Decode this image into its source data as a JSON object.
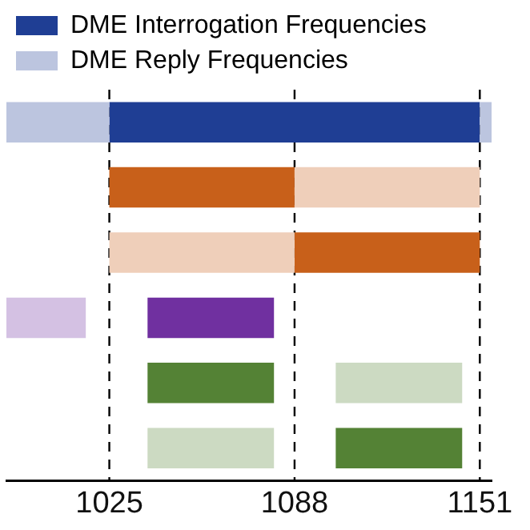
{
  "chart_data": {
    "type": "bar",
    "orientation": "horizontal",
    "categories": [
      null,
      null,
      null,
      null,
      null,
      null
    ],
    "series": [
      {
        "name": "DME Interrogation Frequencies",
        "colors": [
          "#1f3e94",
          "#c8601a",
          "#c8601a",
          "#7030a0",
          "#548235",
          "#548235"
        ],
        "base": [
          1025,
          1025,
          1088,
          1038,
          1038,
          1102
        ],
        "values": [
          126,
          63,
          63,
          43,
          43,
          43
        ]
      },
      {
        "name": "DME Reply Frequencies",
        "colors": [
          "#bcc5df",
          "#efcfba",
          "#efcfba",
          "#d4c1e3",
          "#ccdac2",
          "#ccdac2"
        ],
        "base": [
          990,
          1088,
          1025,
          990,
          1102,
          1038
        ],
        "values": [
          35,
          63,
          63,
          27,
          43,
          43
        ]
      },
      {
        "colors": [
          "#bcc5df",
          null,
          null,
          null,
          null,
          null
        ],
        "base": [
          1151,
          null,
          null,
          null,
          null,
          null
        ],
        "values": [
          4,
          null,
          null,
          null,
          null,
          null
        ]
      }
    ],
    "xlim": [
      990,
      1155
    ],
    "xticks": [
      1025,
      1088,
      1151
    ],
    "ref_lines": [
      {
        "axis": "x",
        "value": 1025,
        "color": "#000000",
        "line_style": "dashed"
      },
      {
        "axis": "x",
        "value": 1088,
        "color": "#000000",
        "line_style": "dashed"
      },
      {
        "axis": "x",
        "value": 1151,
        "color": "#000000",
        "line_style": "dashed"
      }
    ],
    "grid": false,
    "legend": "top left",
    "tick_labels": "x"
  }
}
